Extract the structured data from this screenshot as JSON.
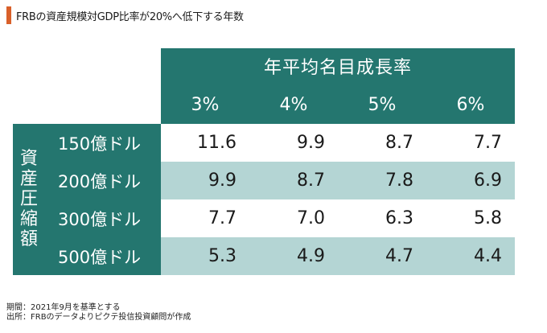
{
  "title": "FRBの資産規模対GDP比率が20%へ低下する年数",
  "colors": {
    "accent": "#d9602a",
    "teal": "#24766f",
    "light_row": "#b4d5d4"
  },
  "chart_data": {
    "type": "table",
    "column_group_label": "年平均名目成長率",
    "columns": [
      "3%",
      "4%",
      "5%",
      "6%"
    ],
    "row_group_label": [
      "資",
      "産",
      "圧",
      "縮",
      "額"
    ],
    "rows": [
      {
        "label": "150億ドル",
        "values": [
          "11.6",
          "9.9",
          "8.7",
          "7.7"
        ]
      },
      {
        "label": "200億ドル",
        "values": [
          "9.9",
          "8.7",
          "7.8",
          "6.9"
        ]
      },
      {
        "label": "300億ドル",
        "values": [
          "7.7",
          "7.0",
          "6.3",
          "5.8"
        ]
      },
      {
        "label": "500億ドル",
        "values": [
          "5.3",
          "4.9",
          "4.7",
          "4.4"
        ]
      }
    ]
  },
  "footer": {
    "period": "期間：2021年9月を基準とする",
    "source": "出所：FRBのデータよりピクテ投信投資顧問が作成"
  }
}
